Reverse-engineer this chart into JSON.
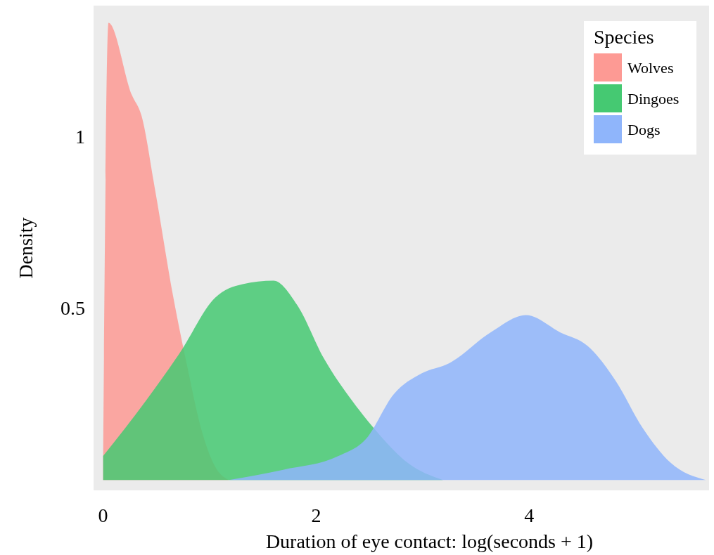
{
  "chart_data": {
    "type": "area",
    "xlabel": "Duration of eye contact: log(seconds + 1)",
    "ylabel": "Density",
    "legend_title": "Species",
    "legend": "top right",
    "xlim": [
      -0.09,
      5.69
    ],
    "ylim": [
      -0.03,
      1.38
    ],
    "xticks": [
      0,
      2,
      4
    ],
    "yticks": [
      0.5,
      1
    ],
    "series": [
      {
        "name": "Wolves",
        "color": "#fd9a94",
        "x": [
          0,
          0.05,
          0.27,
          0.36,
          0.49,
          0.66,
          0.79,
          0.92,
          1.05,
          1.18
        ],
        "values": [
          0.07,
          1.33,
          1.12,
          1.06,
          0.84,
          0.53,
          0.33,
          0.15,
          0.04,
          0
        ]
      },
      {
        "name": "Dingoes",
        "color": "#45c972",
        "x": [
          0,
          0.4,
          0.72,
          1.05,
          1.31,
          1.6,
          1.82,
          2.08,
          2.34,
          2.6,
          2.86,
          3.19
        ],
        "values": [
          0.07,
          0.23,
          0.37,
          0.53,
          0.57,
          0.58,
          0.51,
          0.35,
          0.23,
          0.13,
          0.05,
          0
        ]
      },
      {
        "name": "Dogs",
        "color": "#8fb5fb",
        "x": [
          1.18,
          1.69,
          2.21,
          2.47,
          2.73,
          2.99,
          3.25,
          3.64,
          3.97,
          4.29,
          4.55,
          4.81,
          5.07,
          5.33,
          5.66
        ],
        "values": [
          0,
          0.03,
          0.07,
          0.12,
          0.25,
          0.31,
          0.34,
          0.43,
          0.48,
          0.43,
          0.39,
          0.29,
          0.15,
          0.05,
          0
        ]
      }
    ]
  }
}
